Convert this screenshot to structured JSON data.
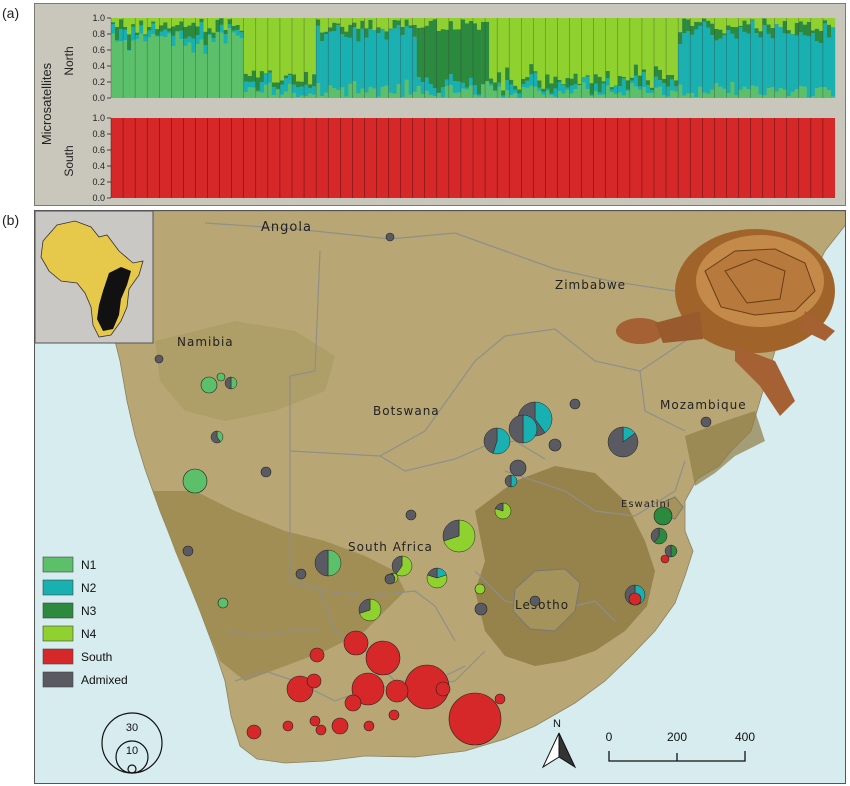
{
  "panel_labels": {
    "a": "(a)",
    "b": "(b)"
  },
  "panel_a": {
    "y_axis_title": "Microsatellites",
    "row_labels": [
      "North",
      "South"
    ],
    "ticks": [
      "0.0",
      "0.2",
      "0.4",
      "0.6",
      "0.8",
      "1.0"
    ],
    "colors": {
      "N1": "#5cbf6a",
      "N2": "#18b0b0",
      "N3": "#2b8a3e",
      "N4": "#8fd12e",
      "South": "#d62828",
      "Admixed": "#5a5a62"
    }
  },
  "map": {
    "countries": [
      "Angola",
      "Zimbabwe",
      "Namibia",
      "Botswana",
      "Mozambique",
      "South Africa",
      "Eswatini",
      "Lesotho"
    ],
    "legend": [
      {
        "label": "N1",
        "color": "#5cbf6a"
      },
      {
        "label": "N2",
        "color": "#18b0b0"
      },
      {
        "label": "N3",
        "color": "#2b8a3e"
      },
      {
        "label": "N4",
        "color": "#8fd12e"
      },
      {
        "label": "South",
        "color": "#d62828"
      },
      {
        "label": "Admixed",
        "color": "#5a5a62"
      }
    ],
    "size_legend": [
      "30",
      "10"
    ],
    "scale_bar": {
      "ticks": [
        "0",
        "200",
        "400"
      ]
    },
    "north_label": "N",
    "colors": {
      "ocean": "#d6ecef",
      "land": "#b8a775",
      "highland": "#8f7d45",
      "inset_bg": "#c9c8c4",
      "inset_africa": "#e6c84a",
      "inset_range": "#111111"
    }
  }
}
